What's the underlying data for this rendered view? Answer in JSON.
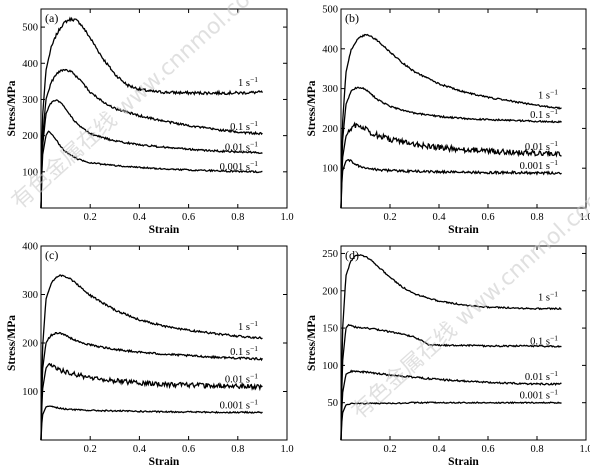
{
  "watermark": "有色金属在线 www.cnnmol.com",
  "chart_data": [
    {
      "type": "line",
      "panel": "(a)",
      "xlabel": "Strain",
      "ylabel": "Stress/MPa",
      "xlim": [
        0,
        1.0
      ],
      "ylim": [
        0,
        550
      ],
      "xticks": [
        0.2,
        0.4,
        0.6,
        0.8,
        1.0
      ],
      "xtick_labels": [
        "0.2",
        "0.4",
        "0.6",
        "0.8",
        "1.0"
      ],
      "yticks": [
        100,
        200,
        300,
        400,
        500
      ],
      "ytick_labels": [
        "100",
        "200",
        "300",
        "400",
        "500"
      ],
      "series": [
        {
          "name": "1 s",
          "unit_sup": "−1",
          "noise": 4,
          "x": [
            0,
            0.005,
            0.02,
            0.04,
            0.06,
            0.08,
            0.1,
            0.12,
            0.14,
            0.16,
            0.2,
            0.25,
            0.3,
            0.35,
            0.4,
            0.45,
            0.5,
            0.6,
            0.7,
            0.8,
            0.9
          ],
          "y": [
            0,
            240,
            380,
            440,
            475,
            500,
            515,
            522,
            520,
            510,
            470,
            415,
            370,
            340,
            328,
            322,
            320,
            318,
            318,
            318,
            320
          ]
        },
        {
          "name": "0.1 s",
          "unit_sup": "−1",
          "noise": 3,
          "x": [
            0,
            0.005,
            0.02,
            0.04,
            0.06,
            0.08,
            0.1,
            0.12,
            0.15,
            0.2,
            0.25,
            0.3,
            0.4,
            0.5,
            0.6,
            0.7,
            0.8,
            0.9
          ],
          "y": [
            0,
            180,
            300,
            345,
            368,
            380,
            382,
            378,
            360,
            320,
            295,
            275,
            255,
            240,
            228,
            218,
            210,
            205
          ]
        },
        {
          "name": "0.01 s",
          "unit_sup": "−1",
          "noise": 2.5,
          "x": [
            0,
            0.005,
            0.02,
            0.04,
            0.06,
            0.08,
            0.1,
            0.12,
            0.15,
            0.2,
            0.3,
            0.4,
            0.5,
            0.6,
            0.7,
            0.8,
            0.9
          ],
          "y": [
            0,
            160,
            260,
            290,
            298,
            292,
            275,
            255,
            230,
            205,
            185,
            175,
            168,
            162,
            158,
            155,
            153
          ]
        },
        {
          "name": "0.001 s",
          "unit_sup": "−1",
          "noise": 2,
          "x": [
            0,
            0.005,
            0.02,
            0.03,
            0.04,
            0.06,
            0.08,
            0.1,
            0.15,
            0.2,
            0.3,
            0.4,
            0.5,
            0.6,
            0.7,
            0.8,
            0.9
          ],
          "y": [
            0,
            140,
            200,
            212,
            208,
            190,
            170,
            155,
            135,
            125,
            117,
            112,
            108,
            105,
            103,
            101,
            100
          ]
        }
      ]
    },
    {
      "type": "line",
      "panel": "(b)",
      "xlabel": "Strain",
      "ylabel": "Stress/MPa",
      "xlim": [
        0,
        1.0
      ],
      "ylim": [
        0,
        500
      ],
      "xticks": [
        0.2,
        0.4,
        0.6,
        0.8,
        1.0
      ],
      "xtick_labels": [
        "0.2",
        "0.4",
        "0.6",
        "0.8",
        "1.0"
      ],
      "yticks": [
        100,
        200,
        300,
        400,
        500
      ],
      "ytick_labels": [
        "100",
        "200",
        "300",
        "400",
        "500"
      ],
      "series": [
        {
          "name": "1 s",
          "unit_sup": "−1",
          "noise": 2,
          "x": [
            0,
            0.005,
            0.02,
            0.04,
            0.06,
            0.08,
            0.1,
            0.12,
            0.15,
            0.2,
            0.25,
            0.3,
            0.4,
            0.5,
            0.6,
            0.7,
            0.8,
            0.9
          ],
          "y": [
            0,
            200,
            340,
            395,
            418,
            430,
            435,
            432,
            420,
            392,
            365,
            342,
            312,
            292,
            278,
            268,
            258,
            250
          ]
        },
        {
          "name": "0.1 s",
          "unit_sup": "−1",
          "noise": 2,
          "x": [
            0,
            0.005,
            0.02,
            0.04,
            0.06,
            0.08,
            0.1,
            0.12,
            0.15,
            0.2,
            0.3,
            0.4,
            0.5,
            0.6,
            0.7,
            0.8,
            0.9
          ],
          "y": [
            0,
            160,
            260,
            292,
            302,
            303,
            298,
            288,
            272,
            255,
            238,
            230,
            225,
            222,
            220,
            218,
            216
          ]
        },
        {
          "name": "0.01 s",
          "unit_sup": "−1",
          "noise": 7,
          "x": [
            0,
            0.005,
            0.02,
            0.04,
            0.06,
            0.08,
            0.1,
            0.12,
            0.15,
            0.2,
            0.3,
            0.4,
            0.5,
            0.6,
            0.7,
            0.8,
            0.9
          ],
          "y": [
            0,
            120,
            180,
            200,
            207,
            205,
            198,
            190,
            182,
            172,
            160,
            152,
            147,
            143,
            140,
            138,
            136
          ]
        },
        {
          "name": "0.001 s",
          "unit_sup": "−1",
          "noise": 3,
          "x": [
            0,
            0.005,
            0.02,
            0.03,
            0.04,
            0.06,
            0.08,
            0.1,
            0.15,
            0.2,
            0.3,
            0.4,
            0.5,
            0.6,
            0.7,
            0.8,
            0.9
          ],
          "y": [
            0,
            90,
            118,
            122,
            118,
            110,
            104,
            100,
            96,
            94,
            92,
            91,
            90,
            89,
            89,
            88,
            88
          ]
        }
      ]
    },
    {
      "type": "line",
      "panel": "(c)",
      "xlabel": "Strain",
      "ylabel": "Stress/MPa",
      "xlim": [
        0,
        1.0
      ],
      "ylim": [
        0,
        400
      ],
      "xticks": [
        0.2,
        0.4,
        0.6,
        0.8,
        1.0
      ],
      "xtick_labels": [
        "0.2",
        "0.4",
        "0.6",
        "0.8",
        "1.0"
      ],
      "yticks": [
        100,
        200,
        300,
        400
      ],
      "ytick_labels": [
        "100",
        "200",
        "300",
        "400"
      ],
      "series": [
        {
          "name": "1 s",
          "unit_sup": "−1",
          "noise": 2,
          "x": [
            0,
            0.005,
            0.02,
            0.04,
            0.06,
            0.08,
            0.1,
            0.12,
            0.15,
            0.2,
            0.3,
            0.4,
            0.5,
            0.6,
            0.7,
            0.8,
            0.9
          ],
          "y": [
            0,
            180,
            290,
            322,
            335,
            339,
            337,
            332,
            320,
            298,
            268,
            248,
            235,
            226,
            220,
            214,
            210
          ]
        },
        {
          "name": "0.1 s",
          "unit_sup": "−1",
          "noise": 2,
          "x": [
            0,
            0.005,
            0.02,
            0.04,
            0.06,
            0.08,
            0.1,
            0.12,
            0.15,
            0.2,
            0.3,
            0.4,
            0.5,
            0.6,
            0.7,
            0.8,
            0.9
          ],
          "y": [
            0,
            140,
            200,
            216,
            220,
            220,
            216,
            210,
            203,
            196,
            187,
            181,
            177,
            174,
            171,
            169,
            167
          ]
        },
        {
          "name": "0.01 s",
          "unit_sup": "−1",
          "noise": 5,
          "x": [
            0,
            0.005,
            0.02,
            0.03,
            0.04,
            0.06,
            0.08,
            0.1,
            0.15,
            0.2,
            0.3,
            0.4,
            0.5,
            0.6,
            0.7,
            0.8,
            0.9
          ],
          "y": [
            0,
            100,
            148,
            155,
            153,
            148,
            144,
            140,
            134,
            129,
            122,
            118,
            115,
            113,
            112,
            111,
            110
          ]
        },
        {
          "name": "0.001 s",
          "unit_sup": "−1",
          "noise": 1.5,
          "x": [
            0,
            0.005,
            0.02,
            0.03,
            0.05,
            0.08,
            0.1,
            0.15,
            0.2,
            0.3,
            0.4,
            0.5,
            0.6,
            0.7,
            0.8,
            0.9
          ],
          "y": [
            0,
            50,
            68,
            70,
            68,
            65,
            64,
            62,
            61,
            60,
            59,
            58,
            58,
            57,
            57,
            57
          ]
        }
      ]
    },
    {
      "type": "line",
      "panel": "(d)",
      "xlabel": "Strain",
      "ylabel": "Stress/MPa",
      "xlim": [
        0,
        1.0
      ],
      "ylim": [
        0,
        260
      ],
      "xticks": [
        0.2,
        0.4,
        0.6,
        0.8,
        1.0
      ],
      "xtick_labels": [
        "0.2",
        "0.4",
        "0.6",
        "0.8",
        "1.0"
      ],
      "yticks": [
        50,
        100,
        150,
        200,
        250
      ],
      "ytick_labels": [
        "50",
        "100",
        "150",
        "200",
        "250"
      ],
      "series": [
        {
          "name": "1 s",
          "unit_sup": "−1",
          "noise": 1,
          "x": [
            0,
            0.005,
            0.02,
            0.04,
            0.06,
            0.08,
            0.1,
            0.12,
            0.15,
            0.2,
            0.25,
            0.3,
            0.4,
            0.5,
            0.6,
            0.7,
            0.8,
            0.9
          ],
          "y": [
            0,
            140,
            220,
            240,
            247,
            248,
            246,
            242,
            233,
            218,
            205,
            196,
            186,
            181,
            178,
            177,
            176,
            176
          ]
        },
        {
          "name": "0.1 s",
          "unit_sup": "−1",
          "noise": 1,
          "x": [
            0,
            0.005,
            0.02,
            0.03,
            0.05,
            0.08,
            0.1,
            0.15,
            0.2,
            0.25,
            0.3,
            0.33,
            0.36,
            0.4,
            0.5,
            0.6,
            0.7,
            0.8,
            0.9
          ],
          "y": [
            0,
            100,
            150,
            154,
            152,
            150,
            150,
            148,
            145,
            142,
            138,
            133,
            127,
            127,
            127,
            126,
            126,
            126,
            125
          ]
        },
        {
          "name": "0.01 s",
          "unit_sup": "−1",
          "noise": 1.2,
          "x": [
            0,
            0.005,
            0.02,
            0.04,
            0.06,
            0.1,
            0.15,
            0.2,
            0.3,
            0.4,
            0.5,
            0.6,
            0.7,
            0.8,
            0.9
          ],
          "y": [
            0,
            60,
            88,
            92,
            92,
            91,
            89,
            87,
            84,
            81,
            79,
            77,
            76,
            75,
            75
          ]
        },
        {
          "name": "0.001 s",
          "unit_sup": "−1",
          "noise": 0.8,
          "x": [
            0,
            0.005,
            0.02,
            0.04,
            0.06,
            0.1,
            0.2,
            0.3,
            0.4,
            0.5,
            0.6,
            0.7,
            0.8,
            0.9
          ],
          "y": [
            0,
            35,
            47,
            49,
            49,
            49,
            49,
            50,
            50,
            50,
            50,
            50,
            50,
            50
          ]
        }
      ]
    }
  ]
}
